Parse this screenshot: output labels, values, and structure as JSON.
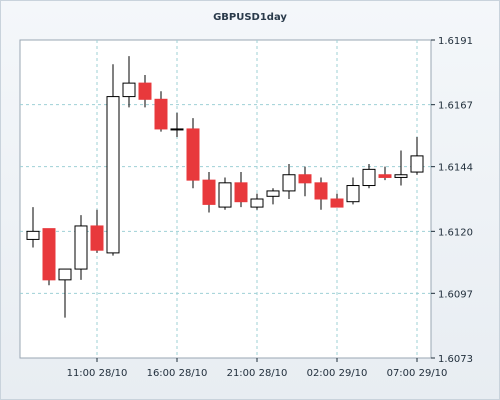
{
  "chart_data": {
    "type": "candlestick",
    "title": "GBPUSD1day",
    "ylim": [
      1.6073,
      1.6191
    ],
    "y_ticks": [
      "1.6191",
      "1.6167",
      "1.6144",
      "1.6120",
      "1.6097",
      "1.6073"
    ],
    "x_ticks": [
      "11:00 28/10",
      "16:00 28/10",
      "21:00 28/10",
      "02:00 29/10",
      "07:00 29/10"
    ],
    "grid": true,
    "colors": {
      "up_fill": "#ffffff",
      "down_fill": "#e8393c",
      "wick": "#000000",
      "grid": "#9fd0d6"
    },
    "candles": [
      {
        "o": 1.6117,
        "h": 1.6129,
        "l": 1.6114,
        "c": 1.612
      },
      {
        "o": 1.6121,
        "h": 1.6121,
        "l": 1.61,
        "c": 1.6102
      },
      {
        "o": 1.6102,
        "h": 1.6106,
        "l": 1.6088,
        "c": 1.6106
      },
      {
        "o": 1.6106,
        "h": 1.6126,
        "l": 1.6102,
        "c": 1.6122
      },
      {
        "o": 1.6122,
        "h": 1.6128,
        "l": 1.6112,
        "c": 1.6113
      },
      {
        "o": 1.6112,
        "h": 1.6182,
        "l": 1.6111,
        "c": 1.617
      },
      {
        "o": 1.617,
        "h": 1.6185,
        "l": 1.6166,
        "c": 1.6175
      },
      {
        "o": 1.6175,
        "h": 1.6178,
        "l": 1.6166,
        "c": 1.6169
      },
      {
        "o": 1.6169,
        "h": 1.6172,
        "l": 1.6157,
        "c": 1.6158
      },
      {
        "o": 1.6158,
        "h": 1.6164,
        "l": 1.6155,
        "c": 1.6158
      },
      {
        "o": 1.6158,
        "h": 1.6162,
        "l": 1.6136,
        "c": 1.6139
      },
      {
        "o": 1.6139,
        "h": 1.6142,
        "l": 1.6127,
        "c": 1.613
      },
      {
        "o": 1.6129,
        "h": 1.614,
        "l": 1.6128,
        "c": 1.6138
      },
      {
        "o": 1.6138,
        "h": 1.6142,
        "l": 1.6129,
        "c": 1.6131
      },
      {
        "o": 1.6129,
        "h": 1.6134,
        "l": 1.6128,
        "c": 1.6132
      },
      {
        "o": 1.6133,
        "h": 1.6136,
        "l": 1.613,
        "c": 1.6135
      },
      {
        "o": 1.6135,
        "h": 1.6145,
        "l": 1.6132,
        "c": 1.6141
      },
      {
        "o": 1.6141,
        "h": 1.6144,
        "l": 1.6133,
        "c": 1.6138
      },
      {
        "o": 1.6138,
        "h": 1.614,
        "l": 1.6128,
        "c": 1.6132
      },
      {
        "o": 1.6132,
        "h": 1.6134,
        "l": 1.6129,
        "c": 1.6129
      },
      {
        "o": 1.6131,
        "h": 1.614,
        "l": 1.613,
        "c": 1.6137
      },
      {
        "o": 1.6137,
        "h": 1.6145,
        "l": 1.6136,
        "c": 1.6143
      },
      {
        "o": 1.6141,
        "h": 1.6144,
        "l": 1.6139,
        "c": 1.614
      },
      {
        "o": 1.614,
        "h": 1.615,
        "l": 1.6137,
        "c": 1.6141
      },
      {
        "o": 1.6142,
        "h": 1.6155,
        "l": 1.6141,
        "c": 1.6148
      }
    ]
  }
}
